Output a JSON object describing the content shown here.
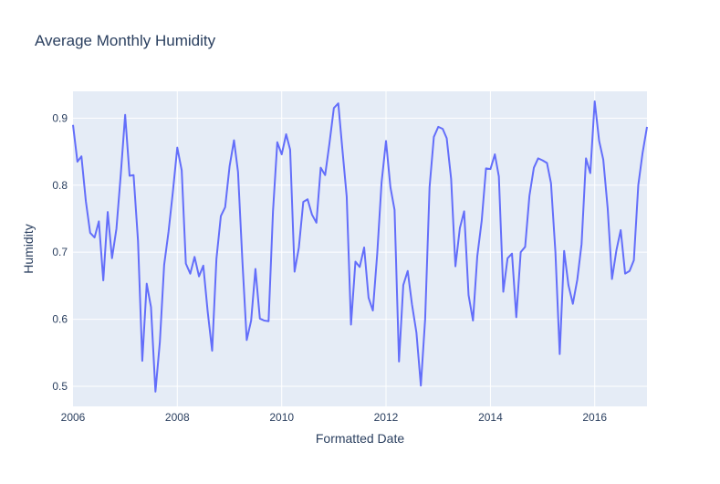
{
  "chart_data": {
    "type": "line",
    "title": "Average Monthly Humidity",
    "xlabel": "Formatted Date",
    "ylabel": "Humidity",
    "xlim": [
      "2006-01-01",
      "2017-01-01"
    ],
    "ylim": [
      0.47,
      0.94
    ],
    "x_ticks": [
      "2006",
      "2008",
      "2010",
      "2012",
      "2014",
      "2016"
    ],
    "y_ticks": [
      "0.5",
      "0.6",
      "0.7",
      "0.8",
      "0.9"
    ],
    "grid": true,
    "legend": "none",
    "colors": {
      "line": "#636efa",
      "plot_bg": "#e5ecf6",
      "grid": "#ffffff",
      "text": "#2a3f5f"
    },
    "series": [
      {
        "x": [
          "2006-01-01",
          "2006-02-01",
          "2006-03-01",
          "2006-04-01",
          "2006-05-01",
          "2006-06-01",
          "2006-07-01",
          "2006-08-01",
          "2006-09-01",
          "2006-10-01",
          "2006-11-01",
          "2006-12-01",
          "2007-01-01",
          "2007-02-01",
          "2007-03-01",
          "2007-04-01",
          "2007-05-01",
          "2007-06-01",
          "2007-07-01",
          "2007-08-01",
          "2007-09-01",
          "2007-10-01",
          "2007-11-01",
          "2007-12-01",
          "2008-01-01",
          "2008-02-01",
          "2008-03-01",
          "2008-04-01",
          "2008-05-01",
          "2008-06-01",
          "2008-07-01",
          "2008-08-01",
          "2008-09-01",
          "2008-10-01",
          "2008-11-01",
          "2008-12-01",
          "2009-01-01",
          "2009-02-01",
          "2009-03-01",
          "2009-04-01",
          "2009-05-01",
          "2009-06-01",
          "2009-07-01",
          "2009-08-01",
          "2009-09-01",
          "2009-10-01",
          "2009-11-01",
          "2009-12-01",
          "2010-01-01",
          "2010-02-01",
          "2010-03-01",
          "2010-04-01",
          "2010-05-01",
          "2010-06-01",
          "2010-07-01",
          "2010-08-01",
          "2010-09-01",
          "2010-10-01",
          "2010-11-01",
          "2010-12-01",
          "2011-01-01",
          "2011-02-01",
          "2011-03-01",
          "2011-04-01",
          "2011-05-01",
          "2011-06-01",
          "2011-07-01",
          "2011-08-01",
          "2011-09-01",
          "2011-10-01",
          "2011-11-01",
          "2011-12-01",
          "2012-01-01",
          "2012-02-01",
          "2012-03-01",
          "2012-04-01",
          "2012-05-01",
          "2012-06-01",
          "2012-07-01",
          "2012-08-01",
          "2012-09-01",
          "2012-10-01",
          "2012-11-01",
          "2012-12-01",
          "2013-01-01",
          "2013-02-01",
          "2013-03-01",
          "2013-04-01",
          "2013-05-01",
          "2013-06-01",
          "2013-07-01",
          "2013-08-01",
          "2013-09-01",
          "2013-10-01",
          "2013-11-01",
          "2013-12-01",
          "2014-01-01",
          "2014-02-01",
          "2014-03-01",
          "2014-04-01",
          "2014-05-01",
          "2014-06-01",
          "2014-07-01",
          "2014-08-01",
          "2014-09-01",
          "2014-10-01",
          "2014-11-01",
          "2014-12-01",
          "2015-01-01",
          "2015-02-01",
          "2015-03-01",
          "2015-04-01",
          "2015-05-01",
          "2015-06-01",
          "2015-07-01",
          "2015-08-01",
          "2015-09-01",
          "2015-10-01",
          "2015-11-01",
          "2015-12-01",
          "2016-01-01",
          "2016-02-01",
          "2016-03-01",
          "2016-04-01",
          "2016-05-01",
          "2016-06-01",
          "2016-07-01",
          "2016-08-01",
          "2016-09-01",
          "2016-10-01",
          "2016-11-01",
          "2016-12-01",
          "2017-01-01"
        ],
        "y": [
          0.89,
          0.835,
          0.843,
          0.776,
          0.729,
          0.722,
          0.746,
          0.658,
          0.76,
          0.691,
          0.735,
          0.815,
          0.905,
          0.814,
          0.815,
          0.717,
          0.538,
          0.653,
          0.618,
          0.492,
          0.566,
          0.681,
          0.731,
          0.79,
          0.856,
          0.822,
          0.683,
          0.668,
          0.693,
          0.664,
          0.68,
          0.611,
          0.553,
          0.69,
          0.754,
          0.767,
          0.828,
          0.867,
          0.82,
          0.686,
          0.569,
          0.598,
          0.675,
          0.601,
          0.598,
          0.597,
          0.761,
          0.864,
          0.846,
          0.876,
          0.853,
          0.671,
          0.707,
          0.775,
          0.779,
          0.756,
          0.744,
          0.826,
          0.815,
          0.862,
          0.915,
          0.922,
          0.855,
          0.783,
          0.592,
          0.686,
          0.678,
          0.707,
          0.632,
          0.613,
          0.699,
          0.804,
          0.866,
          0.797,
          0.763,
          0.537,
          0.651,
          0.672,
          0.622,
          0.58,
          0.501,
          0.6,
          0.797,
          0.872,
          0.887,
          0.884,
          0.87,
          0.809,
          0.679,
          0.736,
          0.761,
          0.636,
          0.598,
          0.694,
          0.747,
          0.825,
          0.824,
          0.846,
          0.813,
          0.641,
          0.691,
          0.698,
          0.603,
          0.7,
          0.708,
          0.784,
          0.826,
          0.84,
          0.837,
          0.833,
          0.803,
          0.7,
          0.548,
          0.702,
          0.651,
          0.623,
          0.659,
          0.712,
          0.84,
          0.818,
          0.925,
          0.866,
          0.838,
          0.765,
          0.66,
          0.703,
          0.733,
          0.668,
          0.672,
          0.688,
          0.8,
          0.848,
          0.887
        ]
      }
    ]
  }
}
